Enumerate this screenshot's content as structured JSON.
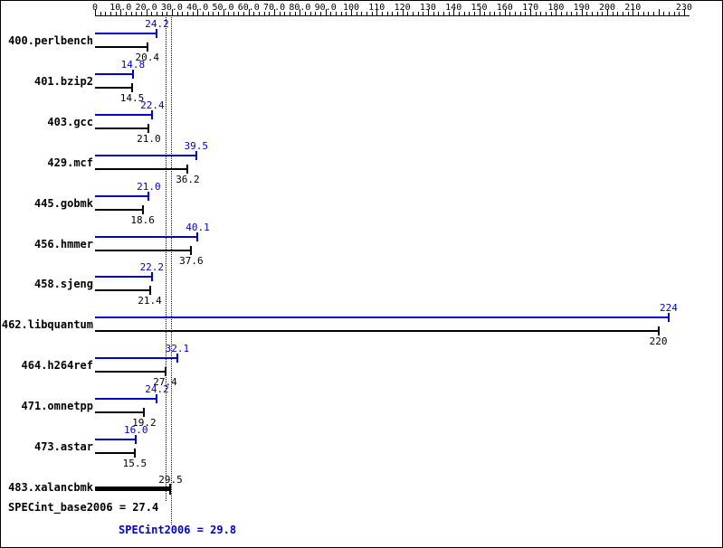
{
  "chart_data": {
    "type": "bar",
    "orientation": "horizontal",
    "title": "",
    "xlabel": "",
    "ylabel": "",
    "axis": {
      "min": 0,
      "max": 230,
      "minor_step": 2,
      "major_step": 10,
      "labels": [
        {
          "value": 0,
          "text": "0"
        },
        {
          "value": 10,
          "text": "10.0"
        },
        {
          "value": 20,
          "text": "20.0"
        },
        {
          "value": 30,
          "text": "30.0"
        },
        {
          "value": 40,
          "text": "40.0"
        },
        {
          "value": 50,
          "text": "50.0"
        },
        {
          "value": 60,
          "text": "60.0"
        },
        {
          "value": 70,
          "text": "70.0"
        },
        {
          "value": 80,
          "text": "80.0"
        },
        {
          "value": 90,
          "text": "90.0"
        },
        {
          "value": 100,
          "text": "100"
        },
        {
          "value": 110,
          "text": "110"
        },
        {
          "value": 120,
          "text": "120"
        },
        {
          "value": 130,
          "text": "130"
        },
        {
          "value": 140,
          "text": "140"
        },
        {
          "value": 150,
          "text": "150"
        },
        {
          "value": 160,
          "text": "160"
        },
        {
          "value": 170,
          "text": "170"
        },
        {
          "value": 180,
          "text": "180"
        },
        {
          "value": 190,
          "text": "190"
        },
        {
          "value": 200,
          "text": "200"
        },
        {
          "value": 210,
          "text": "210"
        },
        {
          "value": 230,
          "text": "230"
        }
      ]
    },
    "colors": {
      "peak": "#0000cd",
      "base": "#000000"
    },
    "series_names": [
      "peak",
      "base"
    ],
    "benchmarks": [
      {
        "name": "400.perlbench",
        "bars": [
          {
            "series": "peak",
            "value": 24.2,
            "label": "24.2"
          },
          {
            "series": "base",
            "value": 20.4,
            "label": "20.4"
          }
        ]
      },
      {
        "name": "401.bzip2",
        "bars": [
          {
            "series": "peak",
            "value": 14.8,
            "label": "14.8"
          },
          {
            "series": "base",
            "value": 14.5,
            "label": "14.5"
          }
        ]
      },
      {
        "name": "403.gcc",
        "bars": [
          {
            "series": "peak",
            "value": 22.4,
            "label": "22.4"
          },
          {
            "series": "base",
            "value": 21.0,
            "label": "21.0"
          }
        ]
      },
      {
        "name": "429.mcf",
        "bars": [
          {
            "series": "peak",
            "value": 39.5,
            "label": "39.5"
          },
          {
            "series": "base",
            "value": 36.2,
            "label": "36.2"
          }
        ]
      },
      {
        "name": "445.gobmk",
        "bars": [
          {
            "series": "peak",
            "value": 21.0,
            "label": "21.0"
          },
          {
            "series": "base",
            "value": 18.6,
            "label": "18.6"
          }
        ]
      },
      {
        "name": "456.hmmer",
        "bars": [
          {
            "series": "peak",
            "value": 40.1,
            "label": "40.1"
          },
          {
            "series": "base",
            "value": 37.6,
            "label": "37.6"
          }
        ]
      },
      {
        "name": "458.sjeng",
        "bars": [
          {
            "series": "peak",
            "value": 22.2,
            "label": "22.2"
          },
          {
            "series": "base",
            "value": 21.4,
            "label": "21.4"
          }
        ]
      },
      {
        "name": "462.libquantum",
        "bars": [
          {
            "series": "peak",
            "value": 224,
            "label": "224"
          },
          {
            "series": "base",
            "value": 220,
            "label": "220"
          }
        ]
      },
      {
        "name": "464.h264ref",
        "bars": [
          {
            "series": "peak",
            "value": 32.1,
            "label": "32.1"
          },
          {
            "series": "base",
            "value": 27.4,
            "label": "27.4"
          }
        ]
      },
      {
        "name": "471.omnetpp",
        "bars": [
          {
            "series": "peak",
            "value": 24.2,
            "label": "24.2"
          },
          {
            "series": "base",
            "value": 19.2,
            "label": "19.2"
          }
        ]
      },
      {
        "name": "473.astar",
        "bars": [
          {
            "series": "peak",
            "value": 16.0,
            "label": "16.0"
          },
          {
            "series": "base",
            "value": 15.5,
            "label": "15.5"
          }
        ]
      },
      {
        "name": "483.xalancbmk",
        "bars": [
          {
            "series": "base",
            "value": 29.5,
            "label": "29.5",
            "thick": true,
            "label_pos": "above"
          }
        ]
      }
    ],
    "means": {
      "base": {
        "label": "SPECint_base2006 = 27.4",
        "value": 27.4
      },
      "peak": {
        "label": "SPECint2006 = 29.8",
        "value": 29.8
      }
    }
  }
}
